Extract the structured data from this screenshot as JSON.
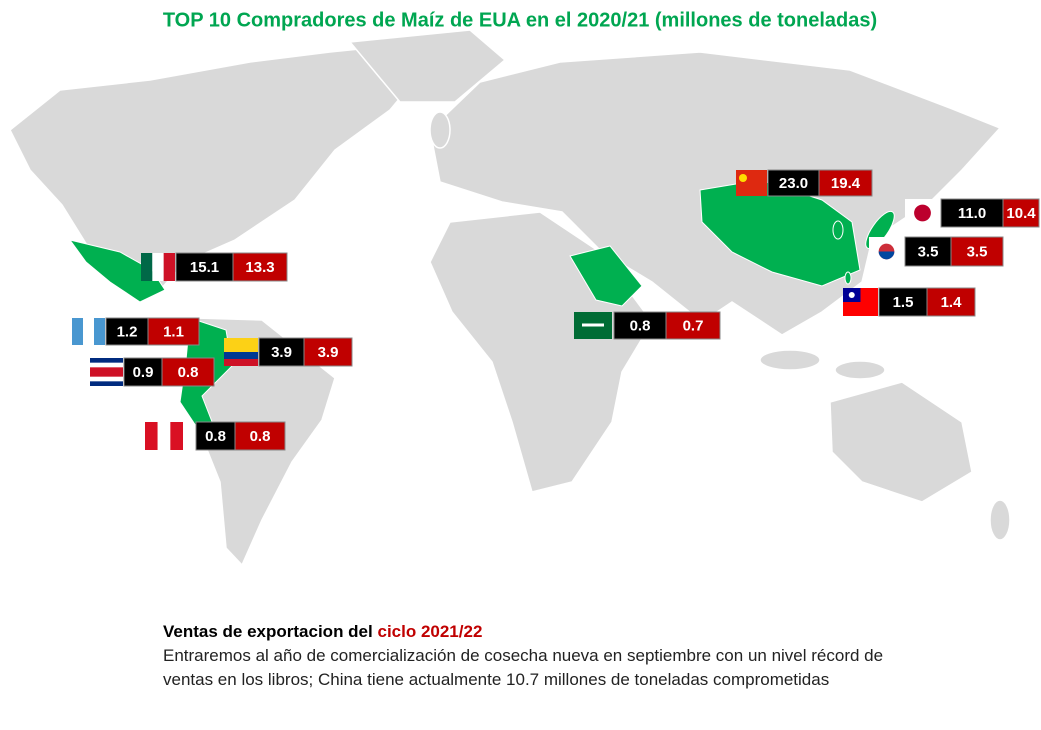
{
  "title": "TOP 10 Compradores de Maíz de EUA en el 2020/21 (millones de toneladas)",
  "buyers": [
    {
      "values": [
        "23.0",
        "19.4"
      ]
    },
    {
      "values": [
        "11.0",
        "10.4"
      ]
    },
    {
      "values": [
        "3.5",
        "3.5"
      ]
    },
    {
      "values": [
        "1.5",
        "1.4"
      ]
    },
    {
      "values": [
        "0.8",
        "0.7"
      ]
    },
    {
      "values": [
        "15.1",
        "13.3"
      ]
    },
    {
      "values": [
        "1.2",
        "1.1"
      ]
    },
    {
      "values": [
        "3.9",
        "3.9"
      ]
    },
    {
      "values": [
        "0.9",
        "0.8"
      ]
    },
    {
      "values": [
        "0.8",
        "0.8"
      ]
    }
  ],
  "footer": {
    "heading": "Ventas de exportacion del",
    "highlight": "ciclo 2021/22",
    "text": "Entraremos al año de comercialización de cosecha nueva en septiembre con un nivel récord de ventas en los libros; China tiene actualmente 10.7 millones de toneladas comprometidas"
  }
}
